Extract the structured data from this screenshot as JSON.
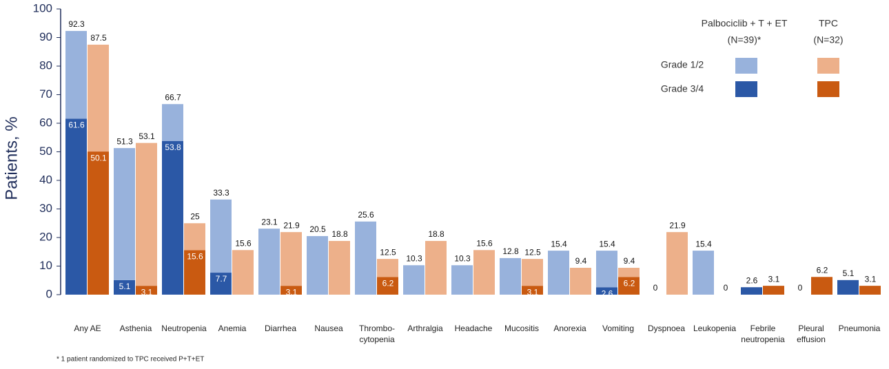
{
  "chart_data": {
    "type": "grouped_stacked_bar",
    "y_label": "Patients, %",
    "footnote": "* 1 patient randomized to TPC received P+T+ET",
    "categories": [
      "Any AE",
      "Asthenia",
      "Neutropenia",
      "Anemia",
      "Diarrhea",
      "Nausea",
      [
        "Thrombo-",
        "cytopenia"
      ],
      "Arthralgia",
      "Headache",
      "Mucositis",
      "Anorexia",
      "Vomiting",
      "Dyspnoea",
      "Leukopenia",
      [
        "Febrile",
        "neutropenia"
      ],
      [
        "Pleural",
        "effusion"
      ],
      "Pneumonia"
    ],
    "ylim": [
      0,
      100
    ],
    "yticks": [
      0,
      10,
      20,
      30,
      40,
      50,
      60,
      70,
      80,
      90,
      100
    ],
    "groups": [
      {
        "name": "Palbociclib + T + ET",
        "subtitle": "(N=39)*",
        "totals": [
          92.3,
          51.3,
          66.7,
          33.3,
          23.1,
          20.5,
          25.6,
          10.3,
          10.3,
          12.8,
          15.4,
          15.4,
          0,
          15.4,
          2.6,
          0,
          5.1
        ],
        "series": [
          {
            "name": "Grade 1/2",
            "color": "#98b2dc",
            "values": [
              30.7,
              46.2,
              12.9,
              25.6,
              23.1,
              20.5,
              25.6,
              10.3,
              10.3,
              12.8,
              15.4,
              12.8,
              0,
              15.4,
              0,
              0,
              0
            ]
          },
          {
            "name": "Grade 3/4",
            "color": "#2b58a6",
            "values": [
              61.6,
              5.1,
              53.8,
              7.7,
              null,
              null,
              null,
              null,
              null,
              null,
              null,
              2.6,
              null,
              null,
              2.6,
              null,
              5.1
            ],
            "value_labels": [
              "61.6",
              "5.1",
              "53.8",
              "7.7",
              null,
              null,
              null,
              null,
              null,
              null,
              null,
              "2.6",
              null,
              null,
              null,
              null,
              null
            ]
          }
        ]
      },
      {
        "name": "TPC",
        "subtitle": "(N=32)",
        "totals": [
          87.5,
          53.1,
          25,
          15.6,
          21.9,
          18.8,
          12.5,
          18.8,
          15.6,
          12.5,
          9.4,
          9.4,
          21.9,
          0,
          3.1,
          6.2,
          3.1
        ],
        "series": [
          {
            "name": "Grade 1/2",
            "color": "#edb08a",
            "values": [
              37.4,
              50.0,
              9.4,
              15.6,
              18.8,
              18.8,
              6.3,
              18.8,
              15.6,
              9.4,
              9.4,
              3.2,
              21.9,
              0,
              0,
              0,
              0
            ]
          },
          {
            "name": "Grade 3/4",
            "color": "#c95a11",
            "values": [
              50.1,
              3.1,
              15.6,
              null,
              3.1,
              null,
              6.2,
              null,
              null,
              3.1,
              null,
              6.2,
              null,
              null,
              3.1,
              6.2,
              3.1
            ],
            "value_labels": [
              "50.1",
              "3.1",
              "15.6",
              null,
              "3.1",
              null,
              "6.2",
              null,
              null,
              "3.1",
              null,
              "6.2",
              null,
              null,
              null,
              null,
              null
            ]
          }
        ]
      }
    ]
  }
}
